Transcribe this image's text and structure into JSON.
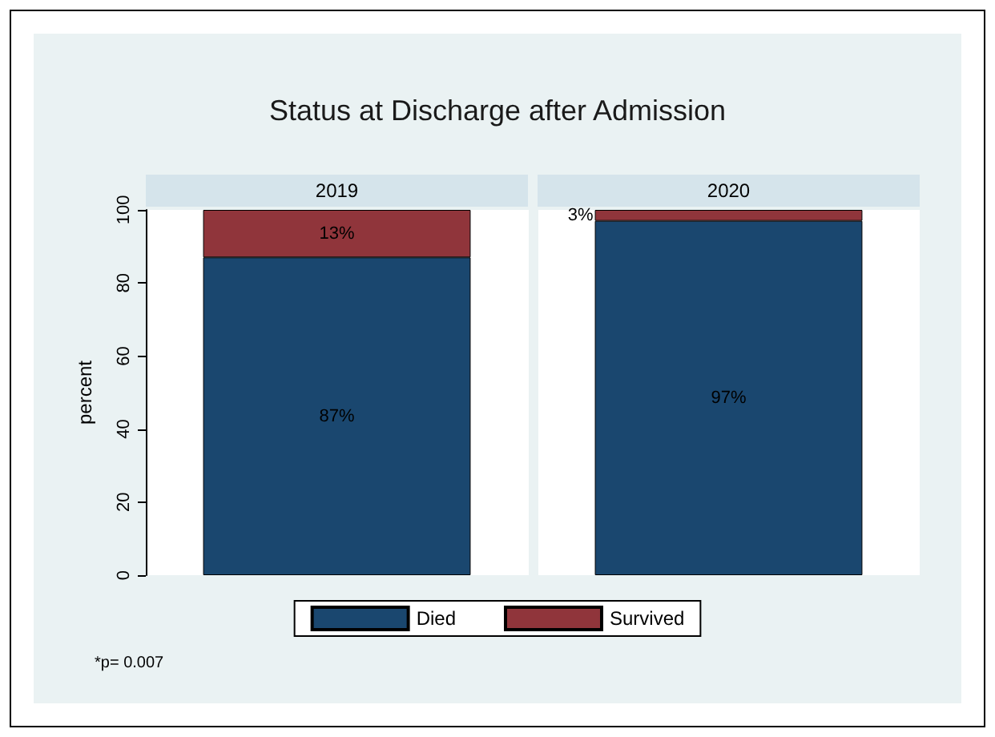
{
  "chart_data": {
    "type": "bar",
    "title": "Status at Discharge after Admission",
    "ylabel": "percent",
    "categories": [
      "2019",
      "2020"
    ],
    "stacked": true,
    "series": [
      {
        "name": "Died",
        "color": "#1a476f",
        "values": [
          87,
          97
        ],
        "value_labels": [
          "87%",
          "97%"
        ]
      },
      {
        "name": "Survived",
        "color": "#90353b",
        "values": [
          13,
          3
        ],
        "value_labels": [
          "13%",
          "3%"
        ]
      }
    ],
    "ylim": [
      0,
      100
    ],
    "yticks": [
      0,
      20,
      40,
      60,
      80,
      100
    ],
    "grid": false,
    "legend": "bottom",
    "tick_labels": "y",
    "annotations": [
      "*p= 0.007"
    ]
  }
}
